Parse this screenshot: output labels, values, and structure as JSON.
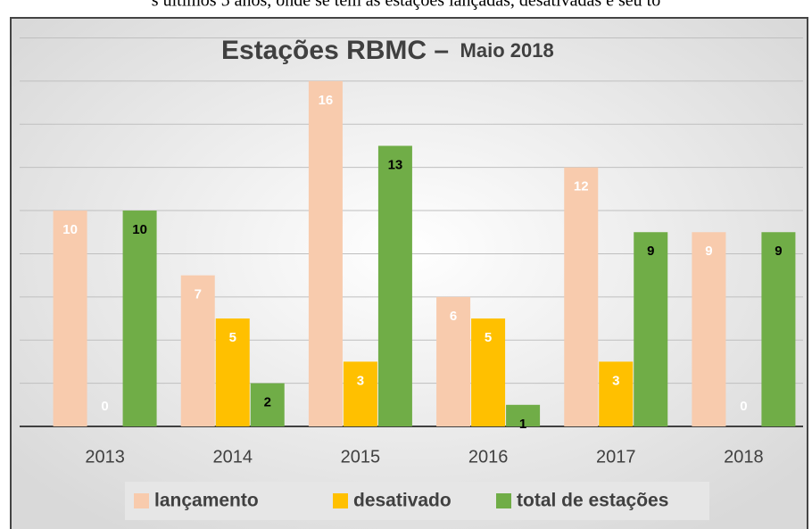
{
  "caption": "s últimos 5 anos, onde se tem as estações lançadas, desativadas e seu to",
  "chart_data": {
    "type": "bar",
    "title": "Estações RBMC –",
    "subtitle": "Maio 2018",
    "categories": [
      "2013",
      "2014",
      "2015",
      "2016",
      "2017",
      "2018"
    ],
    "series": [
      {
        "name": "lançamento",
        "color": "#f8cbad",
        "values": [
          10,
          7,
          16,
          6,
          12,
          9
        ]
      },
      {
        "name": "desativado",
        "color": "#ffc000",
        "values": [
          0,
          5,
          3,
          5,
          3,
          0
        ]
      },
      {
        "name": "total de estações",
        "color": "#70ad47",
        "values": [
          10,
          2,
          13,
          1,
          9,
          9
        ]
      }
    ],
    "ylim": [
      0,
      18
    ],
    "yticks": [
      0,
      2,
      4,
      6,
      8,
      10,
      12,
      14,
      16,
      18
    ],
    "grid": true,
    "legend": "bottom"
  }
}
